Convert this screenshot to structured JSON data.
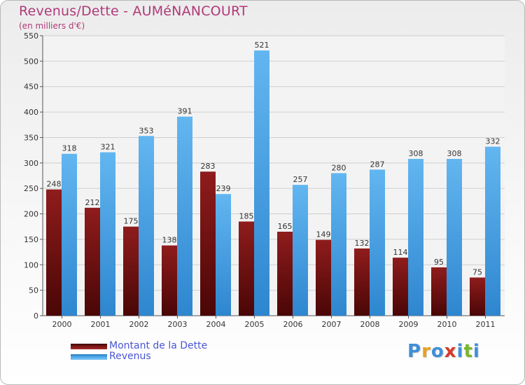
{
  "chart_data": {
    "type": "bar",
    "title": "Revenus/Dette - AUMéNANCOURT",
    "subtitle": "(en milliers d'€)",
    "categories": [
      "2000",
      "2001",
      "2002",
      "2003",
      "2004",
      "2005",
      "2006",
      "2007",
      "2008",
      "2009",
      "2010",
      "2011"
    ],
    "series": [
      {
        "name": "Montant de la Dette",
        "color": "#7a1212",
        "values": [
          248,
          212,
          175,
          138,
          283,
          185,
          165,
          149,
          132,
          114,
          95,
          75
        ]
      },
      {
        "name": "Revenus",
        "color": "#4aa3e6",
        "values": [
          318,
          321,
          353,
          391,
          239,
          521,
          257,
          280,
          287,
          308,
          308,
          332
        ]
      }
    ],
    "ylim": [
      0,
      550
    ],
    "yticks": [
      0,
      50,
      100,
      150,
      200,
      250,
      300,
      350,
      400,
      450,
      500,
      550
    ],
    "grid": true,
    "xlabel": "",
    "ylabel": "",
    "legend_position": "bottom-left"
  },
  "logo": {
    "letters": [
      "P",
      "r",
      "o",
      "x",
      "i",
      "t",
      "i"
    ],
    "colors": [
      "#3f8fd8",
      "#e8a21c",
      "#3f8fd8",
      "#d63a2a",
      "#3f8fd8",
      "#79b82d",
      "#3f8fd8"
    ]
  }
}
